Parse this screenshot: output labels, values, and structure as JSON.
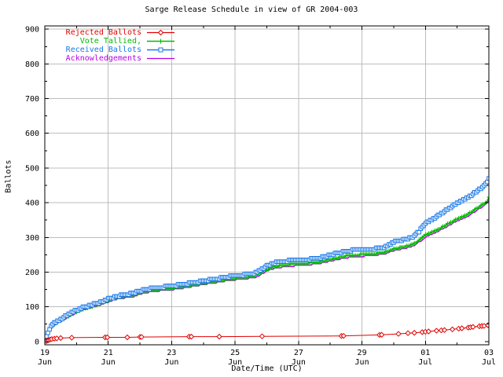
{
  "chart_data": {
    "type": "line",
    "title": "Sarge Release Schedule in view of GR 2004-003",
    "xlabel": "Date/Time (UTC)",
    "ylabel": "Ballots",
    "ylim": [
      0,
      900
    ],
    "xlim_days": [
      0,
      14
    ],
    "grid": true,
    "legend_position": "top-left-inside",
    "yticks": [
      0,
      100,
      200,
      300,
      400,
      500,
      600,
      700,
      800,
      900
    ],
    "y_minor_step": 50,
    "xticks": [
      {
        "day": 0,
        "line1": "19",
        "line2": "Jun"
      },
      {
        "day": 2,
        "line1": "21",
        "line2": "Jun"
      },
      {
        "day": 4,
        "line1": "23",
        "line2": "Jun"
      },
      {
        "day": 6,
        "line1": "25",
        "line2": "Jun"
      },
      {
        "day": 8,
        "line1": "27",
        "line2": "Jun"
      },
      {
        "day": 10,
        "line1": "29",
        "line2": "Jun"
      },
      {
        "day": 12,
        "line1": "01",
        "line2": "Jul"
      },
      {
        "day": 14,
        "line1": "03",
        "line2": "Jul"
      }
    ],
    "x_minor_days": [
      1,
      3,
      5,
      7,
      9,
      11,
      13
    ],
    "legend_order": [
      "Rejected Ballots",
      "Vote Tallied,",
      "Received Ballots",
      "Acknowledgements"
    ],
    "series": [
      {
        "name": "Acknowledgements",
        "color": "#b800e8",
        "marker": "none",
        "line_width": 1.4,
        "quantize": 4,
        "dense_step": 0.05,
        "points": [
          [
            0,
            0
          ],
          [
            0.06,
            13
          ],
          [
            0.12,
            26
          ],
          [
            0.2,
            37
          ],
          [
            0.3,
            47
          ],
          [
            0.45,
            55
          ],
          [
            0.6,
            63
          ],
          [
            0.8,
            73
          ],
          [
            1.0,
            82
          ],
          [
            1.2,
            90
          ],
          [
            1.45,
            97
          ],
          [
            1.7,
            104
          ],
          [
            1.95,
            112
          ],
          [
            2.2,
            120
          ],
          [
            2.5,
            126
          ],
          [
            2.8,
            130
          ],
          [
            3.0,
            136
          ],
          [
            3.2,
            141
          ],
          [
            3.5,
            145
          ],
          [
            3.8,
            148
          ],
          [
            4.0,
            149
          ],
          [
            4.3,
            153
          ],
          [
            4.7,
            159
          ],
          [
            5.0,
            164
          ],
          [
            5.4,
            170
          ],
          [
            5.8,
            176
          ],
          [
            6.1,
            179
          ],
          [
            6.4,
            182
          ],
          [
            6.6,
            184
          ],
          [
            6.8,
            192
          ],
          [
            7.0,
            203
          ],
          [
            7.2,
            210
          ],
          [
            7.45,
            214
          ],
          [
            7.7,
            217
          ],
          [
            8.0,
            219
          ],
          [
            8.3,
            221
          ],
          [
            8.6,
            224
          ],
          [
            8.9,
            230
          ],
          [
            9.2,
            236
          ],
          [
            9.5,
            241
          ],
          [
            9.8,
            244
          ],
          [
            10.1,
            246
          ],
          [
            10.4,
            248
          ],
          [
            10.7,
            252
          ],
          [
            11.0,
            261
          ],
          [
            11.3,
            267
          ],
          [
            11.6,
            275
          ],
          [
            11.8,
            286
          ],
          [
            12.0,
            300
          ],
          [
            12.15,
            307
          ],
          [
            12.3,
            313
          ],
          [
            12.5,
            322
          ],
          [
            12.7,
            332
          ],
          [
            12.9,
            342
          ],
          [
            13.1,
            350
          ],
          [
            13.3,
            359
          ],
          [
            13.5,
            370
          ],
          [
            13.7,
            382
          ],
          [
            13.85,
            391
          ],
          [
            13.95,
            399
          ],
          [
            14,
            408
          ]
        ]
      },
      {
        "name": "Vote Tallied,",
        "color": "#00bb00",
        "marker": "plus",
        "line_width": 1.6,
        "quantize": 4,
        "dense_step": 0.05,
        "points": [
          [
            0,
            0
          ],
          [
            0.06,
            15
          ],
          [
            0.12,
            28
          ],
          [
            0.2,
            40
          ],
          [
            0.3,
            50
          ],
          [
            0.45,
            58
          ],
          [
            0.6,
            66
          ],
          [
            0.8,
            76
          ],
          [
            1.0,
            85
          ],
          [
            1.2,
            93
          ],
          [
            1.45,
            100
          ],
          [
            1.7,
            107
          ],
          [
            1.95,
            116
          ],
          [
            2.2,
            124
          ],
          [
            2.5,
            130
          ],
          [
            2.8,
            134
          ],
          [
            3.0,
            140
          ],
          [
            3.2,
            145
          ],
          [
            3.5,
            149
          ],
          [
            3.8,
            152
          ],
          [
            4.0,
            153
          ],
          [
            4.3,
            157
          ],
          [
            4.7,
            163
          ],
          [
            5.0,
            168
          ],
          [
            5.4,
            174
          ],
          [
            5.8,
            180
          ],
          [
            6.1,
            183
          ],
          [
            6.4,
            186
          ],
          [
            6.6,
            188
          ],
          [
            6.8,
            197
          ],
          [
            7.0,
            208
          ],
          [
            7.2,
            215
          ],
          [
            7.45,
            219
          ],
          [
            7.7,
            222
          ],
          [
            8.0,
            224
          ],
          [
            8.3,
            226
          ],
          [
            8.6,
            229
          ],
          [
            8.9,
            235
          ],
          [
            9.2,
            241
          ],
          [
            9.5,
            246
          ],
          [
            9.8,
            249
          ],
          [
            10.1,
            251
          ],
          [
            10.4,
            253
          ],
          [
            10.7,
            257
          ],
          [
            11.0,
            266
          ],
          [
            11.3,
            272
          ],
          [
            11.6,
            280
          ],
          [
            11.8,
            291
          ],
          [
            12.0,
            306
          ],
          [
            12.15,
            313
          ],
          [
            12.3,
            319
          ],
          [
            12.5,
            328
          ],
          [
            12.7,
            338
          ],
          [
            12.9,
            348
          ],
          [
            13.1,
            356
          ],
          [
            13.3,
            365
          ],
          [
            13.5,
            376
          ],
          [
            13.7,
            388
          ],
          [
            13.85,
            397
          ],
          [
            13.95,
            405
          ],
          [
            14,
            415
          ]
        ]
      },
      {
        "name": "Received Ballots",
        "color": "#1a78e8",
        "marker": "square",
        "line_width": 2.4,
        "quantize": 5,
        "dense_step": 0.05,
        "points": [
          [
            0,
            0
          ],
          [
            0.06,
            18
          ],
          [
            0.12,
            32
          ],
          [
            0.2,
            44
          ],
          [
            0.3,
            54
          ],
          [
            0.45,
            62
          ],
          [
            0.6,
            70
          ],
          [
            0.8,
            80
          ],
          [
            1.0,
            90
          ],
          [
            1.2,
            98
          ],
          [
            1.45,
            105
          ],
          [
            1.7,
            112
          ],
          [
            1.95,
            121
          ],
          [
            2.2,
            129
          ],
          [
            2.5,
            135
          ],
          [
            2.8,
            140
          ],
          [
            3.0,
            146
          ],
          [
            3.2,
            151
          ],
          [
            3.5,
            155
          ],
          [
            3.8,
            158
          ],
          [
            4.0,
            160
          ],
          [
            4.3,
            164
          ],
          [
            4.7,
            170
          ],
          [
            5.0,
            175
          ],
          [
            5.4,
            181
          ],
          [
            5.8,
            187
          ],
          [
            6.1,
            191
          ],
          [
            6.4,
            194
          ],
          [
            6.6,
            196
          ],
          [
            6.8,
            206
          ],
          [
            7.0,
            218
          ],
          [
            7.2,
            226
          ],
          [
            7.45,
            230
          ],
          [
            7.7,
            233
          ],
          [
            8.0,
            235
          ],
          [
            8.3,
            237
          ],
          [
            8.6,
            240
          ],
          [
            8.9,
            247
          ],
          [
            9.2,
            254
          ],
          [
            9.5,
            260
          ],
          [
            9.8,
            264
          ],
          [
            10.1,
            266
          ],
          [
            10.4,
            267
          ],
          [
            10.7,
            272
          ],
          [
            11.0,
            287
          ],
          [
            11.3,
            293
          ],
          [
            11.6,
            301
          ],
          [
            11.8,
            317
          ],
          [
            12.0,
            340
          ],
          [
            12.15,
            350
          ],
          [
            12.3,
            357
          ],
          [
            12.5,
            368
          ],
          [
            12.7,
            381
          ],
          [
            12.9,
            393
          ],
          [
            13.1,
            403
          ],
          [
            13.3,
            413
          ],
          [
            13.5,
            425
          ],
          [
            13.7,
            438
          ],
          [
            13.85,
            449
          ],
          [
            13.95,
            458
          ],
          [
            14,
            468
          ]
        ]
      },
      {
        "name": "Rejected Ballots",
        "color": "#e00000",
        "marker": "diamond",
        "line_width": 1,
        "points": [
          [
            0,
            0
          ],
          [
            0.07,
            2
          ],
          [
            0.12,
            4
          ],
          [
            0.17,
            6
          ],
          [
            0.22,
            7
          ],
          [
            0.3,
            8
          ],
          [
            0.38,
            9
          ],
          [
            0.5,
            10
          ],
          [
            0.85,
            11
          ],
          [
            1.9,
            12
          ],
          [
            2.6,
            12
          ],
          [
            3.0,
            13
          ],
          [
            4.6,
            14
          ],
          [
            5.5,
            14
          ],
          [
            6.85,
            15
          ],
          [
            9.35,
            16
          ],
          [
            10.55,
            19
          ],
          [
            11.15,
            22
          ],
          [
            11.45,
            24
          ],
          [
            11.65,
            25
          ],
          [
            11.9,
            27
          ],
          [
            12.1,
            29
          ],
          [
            12.35,
            31
          ],
          [
            12.6,
            33
          ],
          [
            12.85,
            35
          ],
          [
            13.05,
            37
          ],
          [
            13.35,
            40
          ],
          [
            13.5,
            42
          ],
          [
            13.7,
            44
          ],
          [
            13.85,
            45
          ],
          [
            13.97,
            47
          ],
          [
            14,
            50
          ]
        ],
        "marker_days": [
          0.07,
          0.12,
          0.17,
          0.22,
          0.3,
          0.38,
          0.5,
          0.85,
          1.9,
          1.97,
          2.6,
          3.0,
          3.05,
          4.55,
          4.62,
          5.5,
          6.85,
          9.35,
          9.42,
          10.55,
          10.62,
          11.15,
          11.45,
          11.65,
          11.9,
          12.0,
          12.1,
          12.35,
          12.5,
          12.6,
          12.85,
          13.05,
          13.15,
          13.35,
          13.42,
          13.5,
          13.7,
          13.78,
          13.85,
          13.97
        ]
      }
    ]
  },
  "colors": {
    "grid": "#bdbdbd",
    "axis": "#000000",
    "background": "#ffffff",
    "text": "#000000"
  }
}
